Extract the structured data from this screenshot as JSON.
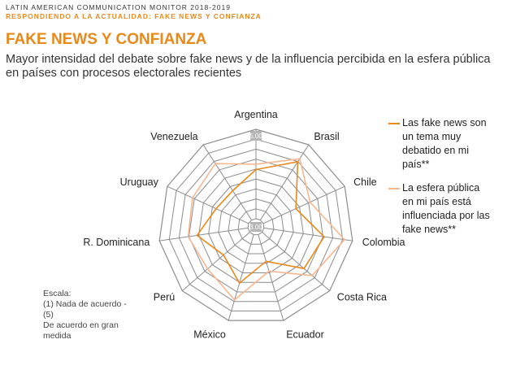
{
  "header": {
    "line1": "LATIN AMERICAN COMMUNICATION MONITOR 2018-2019",
    "line2": "RESPONDIENDO A LA ACTUALIDAD: FAKE NEWS Y CONFIANZA"
  },
  "page_title": "FAKE NEWS Y CONFIANZA",
  "subtitle_line1": "Mayor intensidad del debate sobre fake news y de la influencia percibida en la esfera pública",
  "subtitle_line2": "en países con procesos electorales recientes",
  "scale_note": "Escala:\n(1) Nada de acuerdo - (5)\nDe acuerdo en gran\nmedida",
  "colors": {
    "series1": "#e8891a",
    "series2": "#f6b690",
    "grid": "#8c8c8c",
    "tick_bg": "#b5b5b5"
  },
  "chart_data": {
    "type": "radar",
    "categories": [
      "Argentina",
      "Brasil",
      "Chile",
      "Colombia",
      "Costa Rica",
      "Ecuador",
      "México",
      "Perú",
      "R. Dominicana",
      "Uruguay",
      "Venezuela"
    ],
    "rlim": [
      3.0,
      5.0
    ],
    "tick_labels": [
      "3.00",
      "5.00"
    ],
    "series": [
      {
        "name": "Las fake news son un tema muy debatido en mi país**",
        "values": [
          4.1,
          4.55,
          3.8,
          4.36,
          4.24,
          3.62,
          4.13,
          3.78,
          4.15,
          3.8,
          3.78
        ]
      },
      {
        "name": "La esfera pública en mi país está influenciada por las fake news**",
        "values": [
          4.22,
          4.63,
          4.15,
          4.82,
          4.48,
          3.85,
          4.52,
          4.25,
          4.35,
          4.38,
          4.5
        ]
      }
    ],
    "legend_position": "right",
    "grid": true
  }
}
